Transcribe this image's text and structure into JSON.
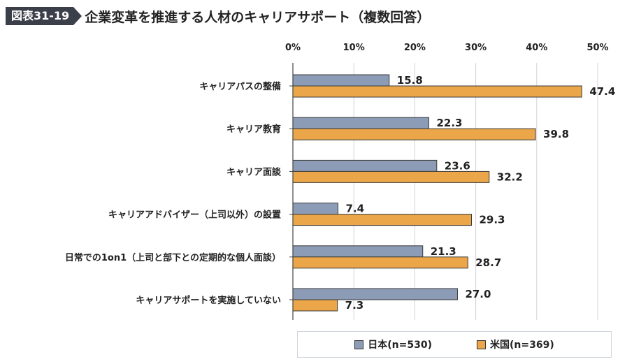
{
  "header": {
    "figure_tag": "図表31-19",
    "title": "企業変革を推進する人材のキャリアサポート（複数回答）"
  },
  "chart_data": {
    "type": "bar",
    "orientation": "horizontal",
    "xlim": [
      0,
      50
    ],
    "ticks": [
      "0%",
      "10%",
      "20%",
      "30%",
      "40%",
      "50%"
    ],
    "tick_values": [
      0,
      10,
      20,
      30,
      40,
      50
    ],
    "grid": true,
    "legend_position": "bottom",
    "categories": [
      "キャリアパスの整備",
      "キャリア教育",
      "キャリア面談",
      "キャリアアドバイザー（上司以外）の設置",
      "日常での1on1（上司と部下との定期的な個人面談）",
      "キャリアサポートを実施していない"
    ],
    "series": [
      {
        "name": "日本(n=530)",
        "color": "#8c9cb6",
        "values": [
          15.8,
          22.3,
          23.6,
          7.4,
          21.3,
          27.0
        ],
        "labels": [
          "15.8",
          "22.3",
          "23.6",
          "7.4",
          "21.3",
          "27.0"
        ]
      },
      {
        "name": "米国(n=369)",
        "color": "#eaa649",
        "values": [
          47.4,
          39.8,
          32.2,
          29.3,
          28.7,
          7.3
        ],
        "labels": [
          "47.4",
          "39.8",
          "32.2",
          "29.3",
          "28.7",
          "7.3"
        ]
      }
    ]
  }
}
